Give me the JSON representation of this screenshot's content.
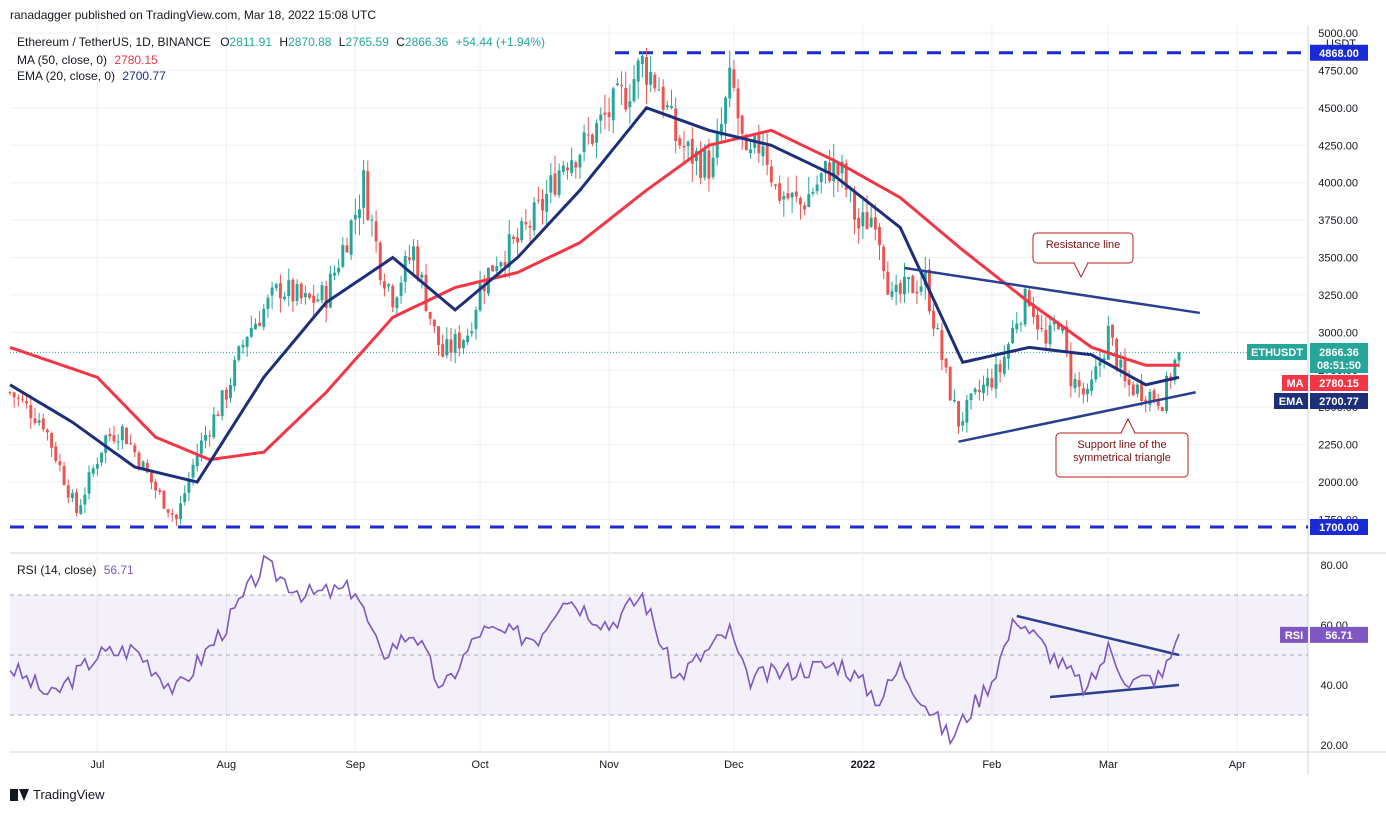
{
  "header": {
    "publisher": "ranadagger published on TradingView.com, Mar 18, 2022 15:08 UTC",
    "symbol_line": "Ethereum / TetherUS, 1D, BINANCE",
    "ohlc": {
      "open_label": "O",
      "open": "2811.91",
      "high_label": "H",
      "high": "2870.88",
      "low_label": "L",
      "low": "2765.59",
      "close_label": "C",
      "close": "2866.36",
      "change": "+54.44 (+1.94%)"
    },
    "ma_line": {
      "label": "MA (50, close, 0)",
      "value": "2780.15"
    },
    "ema_line": {
      "label": "EMA (20, close, 0)",
      "value": "2700.77"
    },
    "rsi_line": {
      "label": "RSI (14, close)",
      "value": "56.71"
    }
  },
  "colors": {
    "up": "#26a69a",
    "down": "#ef5350",
    "ma": "#f23645",
    "ema": "#1e2f7a",
    "rsi": "#7e57c2",
    "trend": "#2a3f8f",
    "dashed_level": "#1a2bd6",
    "grid": "#eef0f3",
    "axis_text": "#131722"
  },
  "price_axis": {
    "unit": "USDT",
    "ticks": [
      "5000.00",
      "4750.00",
      "4500.00",
      "4250.00",
      "4000.00",
      "3750.00",
      "3500.00",
      "3250.00",
      "3000.00",
      "2750.00",
      "2500.00",
      "2250.00",
      "2000.00",
      "1750.00"
    ],
    "labels": {
      "top_level": "4868.00",
      "bottom_level": "1700.00",
      "ethusdt_name": "ETHUSDT",
      "ethusdt_price": "2866.36",
      "countdown": "08:51:50",
      "ma_name": "MA",
      "ma_value": "2780.15",
      "ema_name": "EMA",
      "ema_value": "2700.77"
    }
  },
  "rsi_axis": {
    "ticks": [
      "80.00",
      "60.00",
      "40.00",
      "20.00"
    ],
    "rsi_name": "RSI",
    "rsi_value": "56.71"
  },
  "time_axis": {
    "labels": [
      "Jul",
      "Aug",
      "Sep",
      "Oct",
      "Nov",
      "Dec",
      "2022",
      "Feb",
      "Mar",
      "Apr"
    ]
  },
  "annotations": {
    "resistance": "Resistance line",
    "support_line1": "Support line of the",
    "support_line2": "symmetrical triangle"
  },
  "brand": "TradingView",
  "chart_data": {
    "type": "candlestick",
    "symbol": "ETHUSDT",
    "timeframe": "1D",
    "x_range": [
      "2021-06-10",
      "2022-04-18"
    ],
    "price_range": [
      1620,
      5000
    ],
    "rsi_range": [
      18,
      84
    ],
    "horizontal_levels": [
      4868,
      1700
    ],
    "rsi_band": [
      30,
      70
    ],
    "rsi_midline": 50,
    "price_anchors": [
      [
        "2021-06-10",
        2600
      ],
      [
        "2021-06-18",
        2400
      ],
      [
        "2021-06-26",
        1800
      ],
      [
        "2021-07-03",
        2300
      ],
      [
        "2021-07-07",
        2350
      ],
      [
        "2021-07-15",
        1950
      ],
      [
        "2021-07-20",
        1750
      ],
      [
        "2021-07-25",
        2200
      ],
      [
        "2021-08-01",
        2600
      ],
      [
        "2021-08-06",
        3000
      ],
      [
        "2021-08-14",
        3300
      ],
      [
        "2021-08-20",
        3200
      ],
      [
        "2021-08-25",
        3250
      ],
      [
        "2021-09-01",
        3800
      ],
      [
        "2021-09-03",
        4000
      ],
      [
        "2021-09-07",
        3450
      ],
      [
        "2021-09-10",
        3250
      ],
      [
        "2021-09-15",
        3550
      ],
      [
        "2021-09-20",
        3000
      ],
      [
        "2021-09-22",
        2850
      ],
      [
        "2021-09-28",
        3000
      ],
      [
        "2021-10-01",
        3300
      ],
      [
        "2021-10-05",
        3500
      ],
      [
        "2021-10-10",
        3600
      ],
      [
        "2021-10-16",
        3850
      ],
      [
        "2021-10-21",
        4150
      ],
      [
        "2021-10-26",
        4250
      ],
      [
        "2021-10-30",
        4400
      ],
      [
        "2021-11-05",
        4600
      ],
      [
        "2021-11-09",
        4800
      ],
      [
        "2021-11-13",
        4650
      ],
      [
        "2021-11-17",
        4300
      ],
      [
        "2021-11-20",
        4200
      ],
      [
        "2021-11-26",
        4100
      ],
      [
        "2021-11-30",
        4650
      ],
      [
        "2021-12-01",
        4600
      ],
      [
        "2021-12-04",
        4100
      ],
      [
        "2021-12-08",
        4300
      ],
      [
        "2021-12-11",
        3950
      ],
      [
        "2021-12-17",
        3850
      ],
      [
        "2021-12-24",
        4100
      ],
      [
        "2021-12-27",
        4050
      ],
      [
        "2021-12-31",
        3700
      ],
      [
        "2022-01-04",
        3800
      ],
      [
        "2022-01-08",
        3200
      ],
      [
        "2022-01-12",
        3300
      ],
      [
        "2022-01-16",
        3350
      ],
      [
        "2022-01-21",
        2700
      ],
      [
        "2022-01-24",
        2400
      ],
      [
        "2022-01-29",
        2600
      ],
      [
        "2022-02-03",
        2750
      ],
      [
        "2022-02-07",
        3100
      ],
      [
        "2022-02-10",
        3250
      ],
      [
        "2022-02-14",
        2900
      ],
      [
        "2022-02-17",
        3100
      ],
      [
        "2022-02-20",
        2700
      ],
      [
        "2022-02-24",
        2550
      ],
      [
        "2022-02-28",
        2900
      ],
      [
        "2022-03-01",
        3000
      ],
      [
        "2022-03-05",
        2650
      ],
      [
        "2022-03-10",
        2600
      ],
      [
        "2022-03-14",
        2550
      ],
      [
        "2022-03-17",
        2800
      ],
      [
        "2022-03-18",
        2866
      ]
    ],
    "ma50_anchors": [
      [
        "2021-06-10",
        2900
      ],
      [
        "2021-07-01",
        2700
      ],
      [
        "2021-07-15",
        2300
      ],
      [
        "2021-07-28",
        2150
      ],
      [
        "2021-08-10",
        2200
      ],
      [
        "2021-08-25",
        2600
      ],
      [
        "2021-09-10",
        3100
      ],
      [
        "2021-09-25",
        3300
      ],
      [
        "2021-10-10",
        3400
      ],
      [
        "2021-10-25",
        3600
      ],
      [
        "2021-11-10",
        3950
      ],
      [
        "2021-11-25",
        4250
      ],
      [
        "2021-12-10",
        4350
      ],
      [
        "2021-12-25",
        4150
      ],
      [
        "2022-01-10",
        3900
      ],
      [
        "2022-01-25",
        3550
      ],
      [
        "2022-02-10",
        3200
      ],
      [
        "2022-02-25",
        2900
      ],
      [
        "2022-03-10",
        2780
      ],
      [
        "2022-03-18",
        2780
      ]
    ],
    "ema20_anchors": [
      [
        "2021-06-10",
        2650
      ],
      [
        "2021-06-25",
        2400
      ],
      [
        "2021-07-10",
        2100
      ],
      [
        "2021-07-25",
        2000
      ],
      [
        "2021-08-10",
        2700
      ],
      [
        "2021-08-25",
        3200
      ],
      [
        "2021-09-10",
        3500
      ],
      [
        "2021-09-25",
        3150
      ],
      [
        "2021-10-10",
        3500
      ],
      [
        "2021-10-25",
        3950
      ],
      [
        "2021-11-10",
        4500
      ],
      [
        "2021-11-25",
        4350
      ],
      [
        "2021-12-10",
        4250
      ],
      [
        "2021-12-25",
        4050
      ],
      [
        "2022-01-10",
        3700
      ],
      [
        "2022-01-25",
        2800
      ],
      [
        "2022-02-10",
        2900
      ],
      [
        "2022-02-25",
        2850
      ],
      [
        "2022-03-10",
        2650
      ],
      [
        "2022-03-18",
        2700
      ]
    ],
    "rsi_anchors": [
      [
        "2021-06-10",
        46
      ],
      [
        "2021-06-20",
        36
      ],
      [
        "2021-07-01",
        50
      ],
      [
        "2021-07-10",
        52
      ],
      [
        "2021-07-20",
        38
      ],
      [
        "2021-08-01",
        60
      ],
      [
        "2021-08-10",
        80
      ],
      [
        "2021-08-20",
        70
      ],
      [
        "2021-09-01",
        72
      ],
      [
        "2021-09-07",
        50
      ],
      [
        "2021-09-15",
        58
      ],
      [
        "2021-09-22",
        38
      ],
      [
        "2021-10-01",
        58
      ],
      [
        "2021-10-15",
        56
      ],
      [
        "2021-10-21",
        70
      ],
      [
        "2021-11-01",
        60
      ],
      [
        "2021-11-09",
        70
      ],
      [
        "2021-11-17",
        42
      ],
      [
        "2021-11-30",
        58
      ],
      [
        "2021-12-04",
        42
      ],
      [
        "2021-12-15",
        45
      ],
      [
        "2021-12-27",
        47
      ],
      [
        "2022-01-05",
        35
      ],
      [
        "2022-01-10",
        46
      ],
      [
        "2022-01-22",
        22
      ],
      [
        "2022-02-01",
        42
      ],
      [
        "2022-02-07",
        63
      ],
      [
        "2022-02-14",
        52
      ],
      [
        "2022-02-24",
        38
      ],
      [
        "2022-03-01",
        52
      ],
      [
        "2022-03-06",
        41
      ],
      [
        "2022-03-14",
        43
      ],
      [
        "2022-03-18",
        57
      ]
    ],
    "trendlines": {
      "resistance": [
        [
          "2022-01-11",
          3430
        ],
        [
          "2022-03-23",
          3130
        ]
      ],
      "support": [
        [
          "2022-01-24",
          2270
        ],
        [
          "2022-03-22",
          2600
        ]
      ],
      "rsi_upper": [
        [
          "2022-02-07",
          63
        ],
        [
          "2022-03-18",
          50
        ]
      ],
      "rsi_lower": [
        [
          "2022-02-15",
          36
        ],
        [
          "2022-03-18",
          40
        ]
      ]
    }
  }
}
